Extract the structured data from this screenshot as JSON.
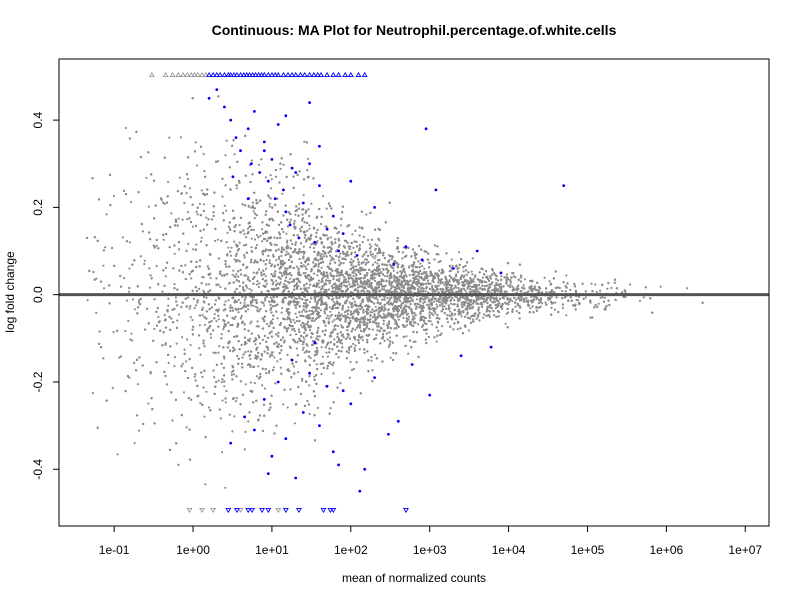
{
  "chart_data": {
    "type": "scatter",
    "title": "Continuous: MA Plot for Neutrophil.percentage.of.white.cells",
    "xlabel": "mean of normalized counts",
    "ylabel": "log fold change",
    "x_scale": "log10",
    "xlim": [
      0.02,
      20000000
    ],
    "ylim": [
      -0.53,
      0.54
    ],
    "x_ticks": [
      {
        "value": 0.1,
        "label": "1e-01"
      },
      {
        "value": 1,
        "label": "1e+00"
      },
      {
        "value": 10,
        "label": "1e+01"
      },
      {
        "value": 100,
        "label": "1e+02"
      },
      {
        "value": 1000,
        "label": "1e+03"
      },
      {
        "value": 10000,
        "label": "1e+04"
      },
      {
        "value": 100000,
        "label": "1e+05"
      },
      {
        "value": 1000000,
        "label": "1e+06"
      },
      {
        "value": 10000000,
        "label": "1e+07"
      }
    ],
    "y_ticks": [
      {
        "value": -0.4,
        "label": "-0.4"
      },
      {
        "value": -0.2,
        "label": "-0.2"
      },
      {
        "value": 0.0,
        "label": "0.0"
      },
      {
        "value": 0.2,
        "label": "0.2"
      },
      {
        "value": 0.4,
        "label": "0.4"
      }
    ],
    "reference_line": {
      "y": 0,
      "color": "#555555"
    },
    "grid": false,
    "legend": "none",
    "colors": {
      "not_significant": "#8c8c8c",
      "significant": "#0000ff",
      "reference_line": "#555555"
    },
    "series": [
      {
        "name": "significant",
        "points": [
          [
            1.6,
            0.45
          ],
          [
            2.0,
            0.47
          ],
          [
            2.5,
            0.43
          ],
          [
            3.0,
            0.4
          ],
          [
            3.5,
            0.36
          ],
          [
            4.0,
            0.33
          ],
          [
            5.0,
            0.38
          ],
          [
            5.5,
            0.3
          ],
          [
            6.0,
            0.42
          ],
          [
            7.0,
            0.28
          ],
          [
            8.0,
            0.35
          ],
          [
            9.0,
            0.26
          ],
          [
            10,
            0.31
          ],
          [
            11,
            0.22
          ],
          [
            12,
            0.39
          ],
          [
            14,
            0.24
          ],
          [
            15,
            0.19
          ],
          [
            17,
            0.16
          ],
          [
            20,
            0.28
          ],
          [
            22,
            0.13
          ],
          [
            25,
            0.21
          ],
          [
            30,
            0.3
          ],
          [
            35,
            0.12
          ],
          [
            40,
            0.25
          ],
          [
            50,
            0.15
          ],
          [
            60,
            0.18
          ],
          [
            70,
            0.1
          ],
          [
            80,
            0.14
          ],
          [
            100,
            0.26
          ],
          [
            120,
            0.09
          ],
          [
            200,
            0.2
          ],
          [
            350,
            0.07
          ],
          [
            500,
            0.11
          ],
          [
            800,
            0.08
          ],
          [
            1200,
            0.24
          ],
          [
            2000,
            0.06
          ],
          [
            4000,
            0.1
          ],
          [
            8000,
            0.05
          ],
          [
            50000,
            0.25
          ],
          [
            900,
            0.38
          ],
          [
            30,
            0.44
          ],
          [
            15,
            0.41
          ],
          [
            8,
            0.33
          ],
          [
            5,
            0.22
          ],
          [
            3.2,
            0.27
          ],
          [
            40,
            0.34
          ],
          [
            18,
            0.29
          ],
          [
            3.0,
            -0.34
          ],
          [
            4.5,
            -0.28
          ],
          [
            6.0,
            -0.31
          ],
          [
            8.0,
            -0.24
          ],
          [
            10,
            -0.37
          ],
          [
            12,
            -0.2
          ],
          [
            15,
            -0.33
          ],
          [
            20,
            -0.42
          ],
          [
            25,
            -0.27
          ],
          [
            30,
            -0.18
          ],
          [
            40,
            -0.3
          ],
          [
            60,
            -0.36
          ],
          [
            80,
            -0.22
          ],
          [
            100,
            -0.25
          ],
          [
            130,
            -0.45
          ],
          [
            150,
            -0.4
          ],
          [
            200,
            -0.19
          ],
          [
            300,
            -0.32
          ],
          [
            400,
            -0.29
          ],
          [
            600,
            -0.16
          ],
          [
            1000,
            -0.23
          ],
          [
            2500,
            -0.14
          ],
          [
            6000,
            -0.12
          ],
          [
            18,
            -0.15
          ],
          [
            35,
            -0.11
          ],
          [
            50,
            -0.21
          ],
          [
            70,
            -0.39
          ],
          [
            9,
            -0.41
          ]
        ],
        "capped_top_x": [
          1.6,
          1.8,
          2.0,
          2.2,
          2.5,
          2.8,
          3.0,
          3.3,
          3.6,
          4.0,
          4.4,
          4.8,
          5.2,
          5.7,
          6.2,
          6.8,
          7.4,
          8.0,
          9.0,
          10,
          11,
          12,
          14,
          16,
          18,
          20,
          23,
          26,
          30,
          34,
          38,
          42,
          50,
          60,
          70,
          85,
          100,
          125,
          150
        ],
        "capped_bottom_x": [
          2.8,
          3.6,
          5.0,
          5.6,
          7.5,
          9.0,
          15,
          22,
          45,
          55,
          60,
          500
        ]
      },
      {
        "name": "not_significant",
        "capped_top_x": [
          0.3,
          0.45,
          0.55,
          0.65,
          0.75,
          0.85,
          0.95,
          1.05,
          1.15,
          1.3,
          1.45
        ],
        "capped_bottom_x": [
          0.9,
          1.3,
          1.8,
          4.0,
          12
        ],
        "distribution": {
          "center_lfc": 0,
          "x_range": [
            0.04,
            10000000
          ],
          "densest_region_x": [
            10,
            100000
          ]
        }
      }
    ]
  }
}
